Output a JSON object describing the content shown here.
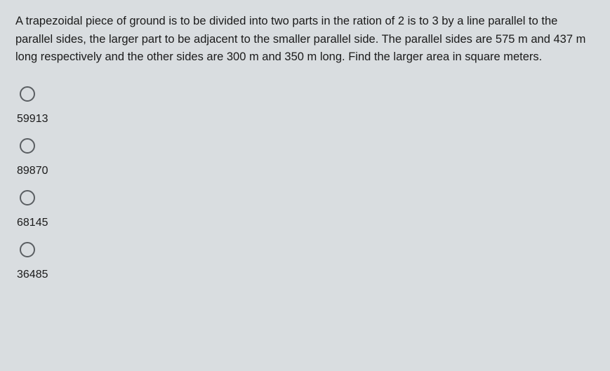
{
  "question": {
    "text": "A trapezoidal piece of ground is to be divided into two parts in the ration of 2 is to 3 by a line parallel to the parallel sides, the larger part to be adjacent to the smaller parallel side. The parallel sides are 575 m and 437 m long respectively and the other sides are 300 m and 350 m long. Find the larger area in square meters."
  },
  "options": [
    {
      "value": "59913"
    },
    {
      "value": "89870"
    },
    {
      "value": "68145"
    },
    {
      "value": "36485"
    }
  ],
  "colors": {
    "background": "#d9dde0",
    "text": "#1a1a1a",
    "radio_border": "#5a5e62"
  }
}
